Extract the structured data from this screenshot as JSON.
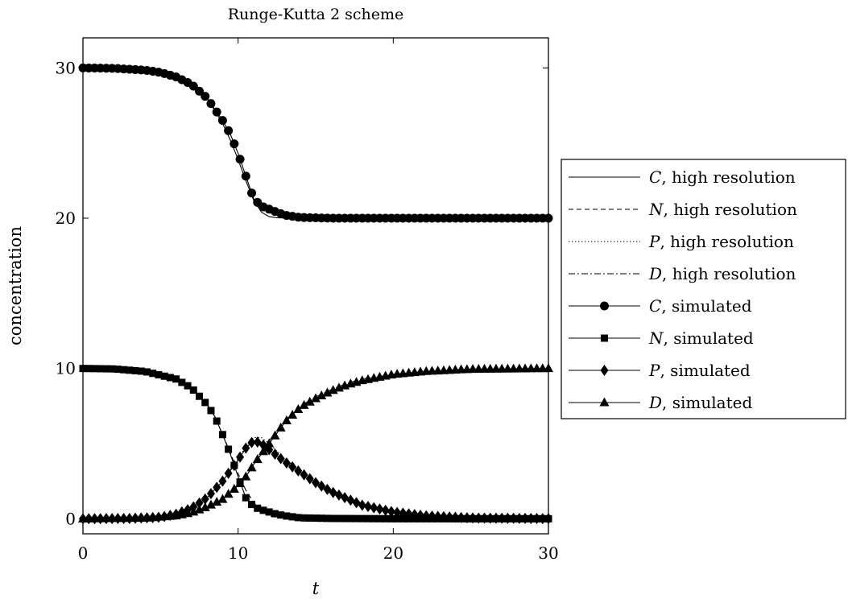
{
  "chart_data": {
    "type": "line",
    "title": "Runge-Kutta 2 scheme",
    "xlabel": "t",
    "ylabel": "concentration",
    "xlim": [
      0,
      30
    ],
    "ylim": [
      -1,
      32
    ],
    "xticks": [
      "0",
      "10",
      "20",
      "30"
    ],
    "yticks": [
      "0",
      "10",
      "20",
      "30"
    ],
    "grid": false,
    "legend_placement": "right-outside",
    "series": [
      {
        "var": "C",
        "suffix": ", high resolution",
        "style": "solid",
        "marker": "none",
        "x": [
          0,
          2,
          4,
          5,
          6,
          7,
          8,
          9,
          9.5,
          10,
          10.5,
          11,
          11.5,
          12,
          12.5,
          13,
          14,
          16,
          20,
          30
        ],
        "y": [
          30,
          29.97,
          29.85,
          29.7,
          29.4,
          28.9,
          28.0,
          26.3,
          25.2,
          23.9,
          22.5,
          21.2,
          20.4,
          20.1,
          20.03,
          20.01,
          20,
          20,
          20,
          20
        ]
      },
      {
        "var": "N",
        "suffix": ", high resolution",
        "style": "dashed",
        "marker": "none",
        "x": [
          0,
          2,
          4,
          6,
          7,
          8,
          8.5,
          9,
          9.5,
          10,
          10.5,
          11,
          11.5,
          12,
          12.5,
          13,
          14,
          16,
          20,
          30
        ],
        "y": [
          10,
          9.97,
          9.8,
          9.3,
          8.7,
          7.6,
          6.8,
          5.6,
          4.4,
          3.0,
          1.9,
          1.1,
          0.5,
          0.2,
          0.08,
          0.03,
          0,
          0,
          0,
          0
        ]
      },
      {
        "var": "P",
        "suffix": ", high resolution",
        "style": "dotted",
        "marker": "none",
        "x": [
          0,
          3,
          5,
          6,
          7,
          8,
          9,
          10,
          10.5,
          11,
          11.5,
          12,
          12.5,
          13,
          14,
          15,
          16,
          18,
          20,
          22,
          25,
          30
        ],
        "y": [
          0,
          0.02,
          0.1,
          0.3,
          0.7,
          1.4,
          2.5,
          4.0,
          4.8,
          5.4,
          5.4,
          5.0,
          4.5,
          4.0,
          3.2,
          2.4,
          1.8,
          0.9,
          0.45,
          0.2,
          0.05,
          0.01
        ]
      },
      {
        "var": "D",
        "suffix": ", high resolution",
        "style": "dashdot",
        "marker": "none",
        "x": [
          0,
          4,
          6,
          7,
          8,
          9,
          10,
          10.5,
          11,
          11.5,
          12,
          13,
          14,
          15,
          16,
          17,
          18,
          20,
          22,
          25,
          30
        ],
        "y": [
          0,
          0.05,
          0.2,
          0.4,
          0.8,
          1.3,
          2.2,
          2.8,
          3.6,
          4.4,
          5.2,
          6.5,
          7.5,
          8.1,
          8.6,
          9.0,
          9.3,
          9.6,
          9.8,
          9.95,
          10
        ]
      },
      {
        "var": "C",
        "suffix": ", simulated",
        "style": "solid",
        "marker": "circle",
        "x": [
          0,
          2,
          4,
          5,
          6,
          7,
          8,
          9,
          9.5,
          10,
          10.5,
          11,
          11.5,
          12,
          12.5,
          13,
          14,
          16,
          20,
          30
        ],
        "y": [
          30,
          29.97,
          29.85,
          29.7,
          29.4,
          28.9,
          28.0,
          26.5,
          25.6,
          24.3,
          22.8,
          21.3,
          20.8,
          20.6,
          20.4,
          20.2,
          20.05,
          20,
          20,
          20
        ]
      },
      {
        "var": "N",
        "suffix": ", simulated",
        "style": "solid",
        "marker": "square",
        "x": [
          0,
          2,
          4,
          6,
          7,
          8,
          8.5,
          9,
          9.5,
          10,
          10.5,
          11,
          11.5,
          12,
          12.5,
          13,
          14,
          16,
          20,
          30
        ],
        "y": [
          10,
          9.97,
          9.8,
          9.3,
          8.7,
          7.6,
          6.8,
          5.6,
          4.3,
          2.8,
          1.4,
          0.8,
          0.6,
          0.45,
          0.3,
          0.2,
          0.06,
          0.02,
          0,
          0
        ]
      },
      {
        "var": "P",
        "suffix": ", simulated",
        "style": "solid",
        "marker": "diamond",
        "x": [
          0,
          3,
          5,
          6,
          7,
          8,
          9,
          10,
          10.5,
          11,
          11.5,
          12,
          12.5,
          13,
          14,
          15,
          16,
          18,
          20,
          22,
          25,
          30
        ],
        "y": [
          0,
          0.02,
          0.1,
          0.3,
          0.7,
          1.4,
          2.5,
          3.9,
          4.7,
          5.2,
          5.0,
          4.6,
          4.2,
          3.8,
          3.1,
          2.4,
          1.8,
          0.9,
          0.45,
          0.2,
          0.05,
          0.01
        ]
      },
      {
        "var": "D",
        "suffix": ", simulated",
        "style": "solid",
        "marker": "triangle",
        "x": [
          0,
          4,
          6,
          7,
          8,
          9,
          10,
          10.5,
          11,
          11.5,
          12,
          13,
          14,
          15,
          16,
          17,
          18,
          20,
          22,
          25,
          30
        ],
        "y": [
          0,
          0.05,
          0.2,
          0.4,
          0.8,
          1.3,
          2.2,
          2.8,
          3.6,
          4.3,
          5.0,
          6.4,
          7.4,
          8.0,
          8.5,
          8.9,
          9.2,
          9.6,
          9.8,
          9.95,
          10
        ]
      }
    ]
  }
}
